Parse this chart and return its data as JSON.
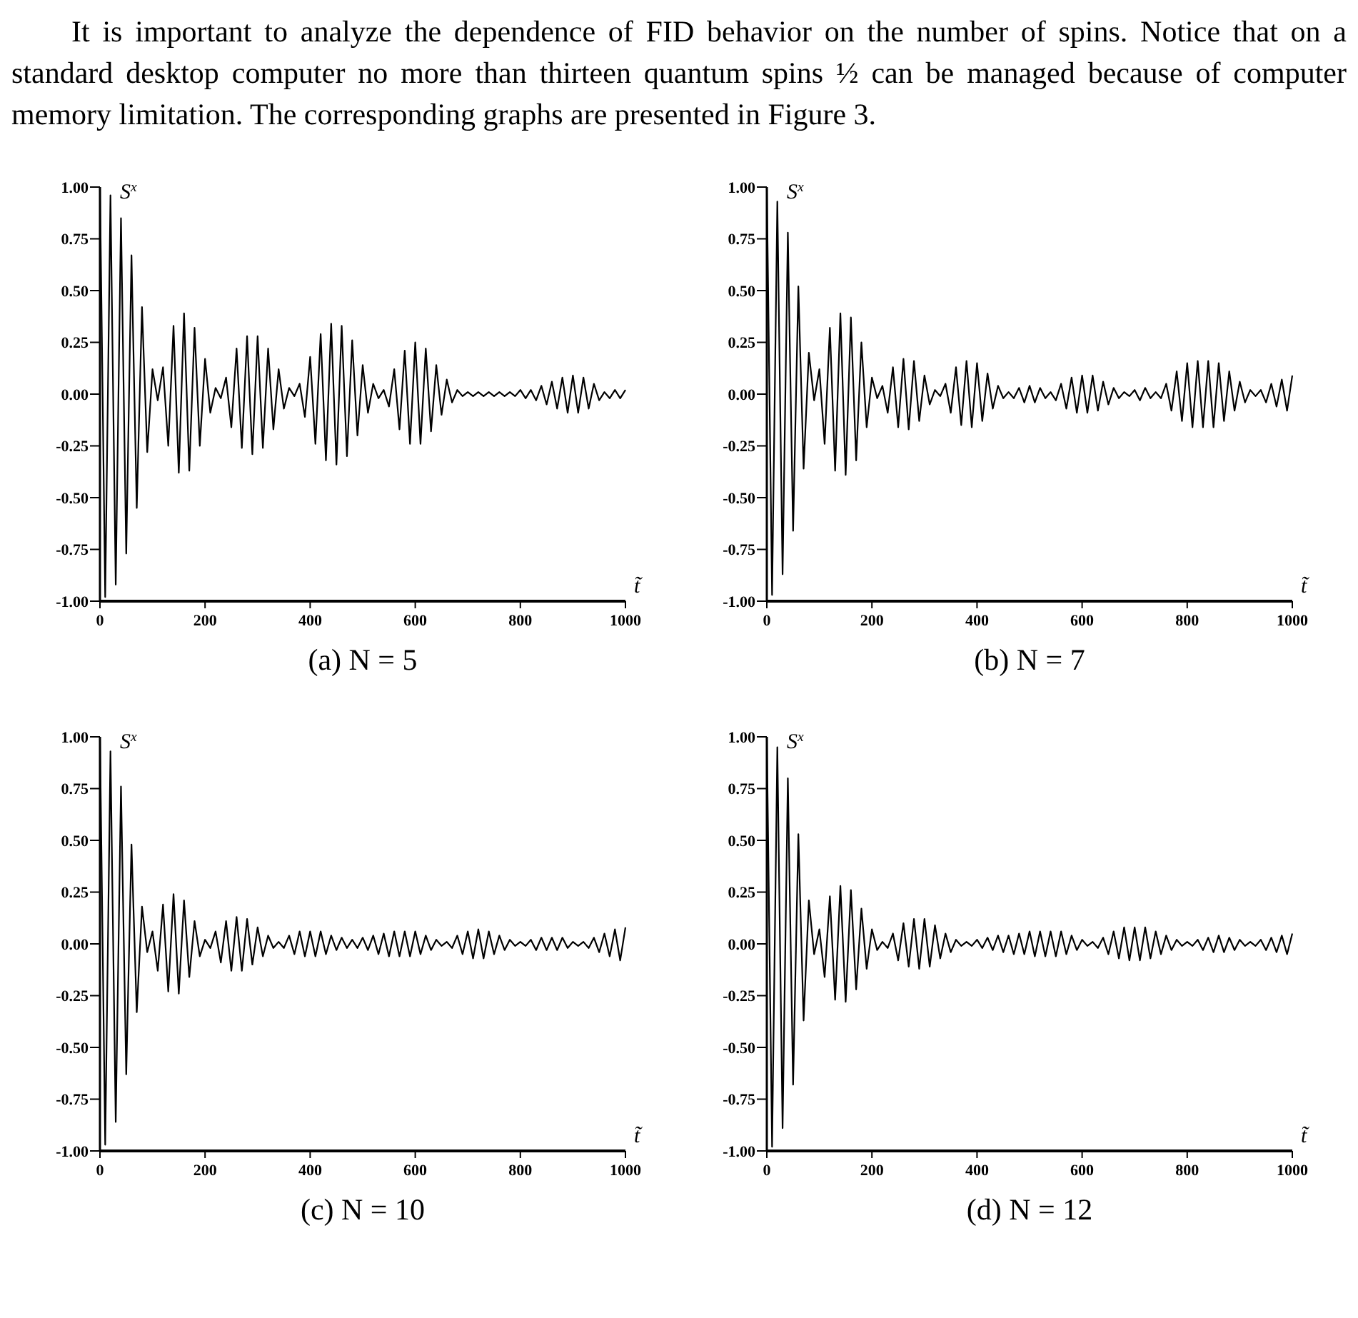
{
  "chart_data": [
    {
      "type": "line",
      "title": "(a)  N = 5",
      "xlabel": "t̃",
      "ylabel": "S$^{x}$",
      "annotations": [
        "It is important to analyze the dependence of FID behavior on the number of spins. Notice that on a standard desktop computer no more than thirteen quantum spins ½ can be managed because of computer memory limitation. The corresponding graphs are presented in Figure 3."
      ],
      "xlim": [
        0,
        1000
      ],
      "ylim": [
        -1,
        1
      ],
      "xticks": [
        0,
        200,
        400,
        600,
        800,
        1000
      ],
      "yticks": [
        {
          "value": -1,
          "label": "-1.00"
        },
        {
          "value": -0.75,
          "label": "-0.75"
        },
        {
          "value": -0.5,
          "label": "-0.50"
        },
        {
          "value": -0.25,
          "label": "-0.25"
        },
        {
          "value": 0,
          "label": "0.00"
        },
        {
          "value": 0.25,
          "label": "0.25"
        },
        {
          "value": 0.5,
          "label": "0.50"
        },
        {
          "value": 0.75,
          "label": "0.75"
        },
        {
          "value": 1,
          "label": "1.00"
        }
      ],
      "x": [
        0,
        10,
        20,
        30,
        40,
        50,
        60,
        70,
        80,
        90,
        100,
        110,
        120,
        130,
        140,
        150,
        160,
        170,
        180,
        190,
        200,
        210,
        220,
        230,
        240,
        250,
        260,
        270,
        280,
        290,
        300,
        310,
        320,
        330,
        340,
        350,
        360,
        370,
        380,
        390,
        400,
        410,
        420,
        430,
        440,
        450,
        460,
        470,
        480,
        490,
        500,
        510,
        520,
        530,
        540,
        550,
        560,
        570,
        580,
        590,
        600,
        610,
        620,
        630,
        640,
        650,
        660,
        670,
        680,
        690,
        700,
        710,
        720,
        730,
        740,
        750,
        760,
        770,
        780,
        790,
        800,
        810,
        820,
        830,
        840,
        850,
        860,
        870,
        880,
        890,
        900,
        910,
        920,
        930,
        940,
        950,
        960,
        970,
        980,
        990,
        1000
      ],
      "series": [
        {
          "color": "#000000",
          "values": [
            1.0,
            -0.98,
            0.96,
            -0.92,
            0.85,
            -0.77,
            0.67,
            -0.55,
            0.42,
            -0.28,
            0.12,
            -0.03,
            0.13,
            -0.25,
            0.33,
            -0.38,
            0.39,
            -0.37,
            0.32,
            -0.25,
            0.17,
            -0.09,
            0.03,
            -0.02,
            0.08,
            -0.16,
            0.22,
            -0.26,
            0.28,
            -0.29,
            0.28,
            -0.26,
            0.22,
            -0.17,
            0.12,
            -0.07,
            0.03,
            -0.01,
            0.05,
            -0.11,
            0.18,
            -0.24,
            0.29,
            -0.32,
            0.34,
            -0.34,
            0.33,
            -0.3,
            0.26,
            -0.2,
            0.14,
            -0.09,
            0.05,
            -0.02,
            0.02,
            -0.06,
            0.12,
            -0.17,
            0.21,
            -0.24,
            0.25,
            -0.24,
            0.22,
            -0.18,
            0.14,
            -0.1,
            0.07,
            -0.04,
            0.02,
            -0.01,
            0.01,
            -0.01,
            0.01,
            -0.01,
            0.01,
            -0.01,
            0.01,
            -0.01,
            0.01,
            -0.01,
            0.02,
            -0.02,
            0.02,
            -0.03,
            0.04,
            -0.05,
            0.06,
            -0.07,
            0.08,
            -0.09,
            0.09,
            -0.09,
            0.08,
            -0.07,
            0.05,
            -0.03,
            0.01,
            -0.02,
            0.02,
            -0.02,
            0.02
          ]
        }
      ]
    },
    {
      "type": "line",
      "title": "(b)  N = 7",
      "xlabel": "t̃",
      "ylabel": "S$^{x}$",
      "xlim": [
        0,
        1000
      ],
      "ylim": [
        -1,
        1
      ],
      "xticks": [
        0,
        200,
        400,
        600,
        800,
        1000
      ],
      "yticks": [
        {
          "value": -1,
          "label": "-1.00"
        },
        {
          "value": -0.75,
          "label": "-0.75"
        },
        {
          "value": -0.5,
          "label": "-0.50"
        },
        {
          "value": -0.25,
          "label": "-0.25"
        },
        {
          "value": 0,
          "label": "0.00"
        },
        {
          "value": 0.25,
          "label": "0.25"
        },
        {
          "value": 0.5,
          "label": "0.50"
        },
        {
          "value": 0.75,
          "label": "0.75"
        },
        {
          "value": 1,
          "label": "1.00"
        }
      ],
      "x": [
        0,
        10,
        20,
        30,
        40,
        50,
        60,
        70,
        80,
        90,
        100,
        110,
        120,
        130,
        140,
        150,
        160,
        170,
        180,
        190,
        200,
        210,
        220,
        230,
        240,
        250,
        260,
        270,
        280,
        290,
        300,
        310,
        320,
        330,
        340,
        350,
        360,
        370,
        380,
        390,
        400,
        410,
        420,
        430,
        440,
        450,
        460,
        470,
        480,
        490,
        500,
        510,
        520,
        530,
        540,
        550,
        560,
        570,
        580,
        590,
        600,
        610,
        620,
        630,
        640,
        650,
        660,
        670,
        680,
        690,
        700,
        710,
        720,
        730,
        740,
        750,
        760,
        770,
        780,
        790,
        800,
        810,
        820,
        830,
        840,
        850,
        860,
        870,
        880,
        890,
        900,
        910,
        920,
        930,
        940,
        950,
        960,
        970,
        980,
        990,
        1000
      ],
      "series": [
        {
          "color": "#000000",
          "values": [
            1.0,
            -0.97,
            0.93,
            -0.87,
            0.78,
            -0.66,
            0.52,
            -0.36,
            0.2,
            -0.03,
            0.12,
            -0.24,
            0.32,
            -0.37,
            0.39,
            -0.39,
            0.37,
            -0.32,
            0.25,
            -0.16,
            0.08,
            -0.02,
            0.04,
            -0.09,
            0.13,
            -0.16,
            0.17,
            -0.17,
            0.16,
            -0.13,
            0.09,
            -0.05,
            0.02,
            -0.01,
            0.05,
            -0.09,
            0.13,
            -0.15,
            0.16,
            -0.16,
            0.15,
            -0.13,
            0.1,
            -0.07,
            0.04,
            -0.02,
            0.01,
            -0.02,
            0.03,
            -0.04,
            0.04,
            -0.04,
            0.03,
            -0.02,
            0.01,
            -0.03,
            0.05,
            -0.07,
            0.08,
            -0.09,
            0.09,
            -0.09,
            0.09,
            -0.08,
            0.06,
            -0.05,
            0.03,
            -0.02,
            0.01,
            -0.01,
            0.02,
            -0.03,
            0.03,
            -0.02,
            0.01,
            -0.02,
            0.05,
            -0.08,
            0.11,
            -0.13,
            0.15,
            -0.16,
            0.16,
            -0.16,
            0.16,
            -0.16,
            0.15,
            -0.13,
            0.11,
            -0.08,
            0.06,
            -0.04,
            0.02,
            -0.01,
            0.02,
            -0.04,
            0.05,
            -0.06,
            0.07,
            -0.08,
            0.09
          ]
        }
      ]
    },
    {
      "type": "line",
      "title": "(c)  N = 10",
      "xlabel": "t̃",
      "ylabel": "S$^{x}$",
      "xlim": [
        0,
        1000
      ],
      "ylim": [
        -1,
        1
      ],
      "xticks": [
        0,
        200,
        400,
        600,
        800,
        1000
      ],
      "yticks": [
        {
          "value": -1,
          "label": "-1.00"
        },
        {
          "value": -0.75,
          "label": "-0.75"
        },
        {
          "value": -0.5,
          "label": "-0.50"
        },
        {
          "value": -0.25,
          "label": "-0.25"
        },
        {
          "value": 0,
          "label": "0.00"
        },
        {
          "value": 0.25,
          "label": "0.25"
        },
        {
          "value": 0.5,
          "label": "0.50"
        },
        {
          "value": 0.75,
          "label": "0.75"
        },
        {
          "value": 1,
          "label": "1.00"
        }
      ],
      "x": [
        0,
        10,
        20,
        30,
        40,
        50,
        60,
        70,
        80,
        90,
        100,
        110,
        120,
        130,
        140,
        150,
        160,
        170,
        180,
        190,
        200,
        210,
        220,
        230,
        240,
        250,
        260,
        270,
        280,
        290,
        300,
        310,
        320,
        330,
        340,
        350,
        360,
        370,
        380,
        390,
        400,
        410,
        420,
        430,
        440,
        450,
        460,
        470,
        480,
        490,
        500,
        510,
        520,
        530,
        540,
        550,
        560,
        570,
        580,
        590,
        600,
        610,
        620,
        630,
        640,
        650,
        660,
        670,
        680,
        690,
        700,
        710,
        720,
        730,
        740,
        750,
        760,
        770,
        780,
        790,
        800,
        810,
        820,
        830,
        840,
        850,
        860,
        870,
        880,
        890,
        900,
        910,
        920,
        930,
        940,
        950,
        960,
        970,
        980,
        990,
        1000
      ],
      "series": [
        {
          "color": "#000000",
          "values": [
            1.0,
            -0.97,
            0.93,
            -0.86,
            0.76,
            -0.63,
            0.48,
            -0.33,
            0.18,
            -0.04,
            0.06,
            -0.13,
            0.19,
            -0.23,
            0.24,
            -0.24,
            0.21,
            -0.16,
            0.11,
            -0.06,
            0.02,
            -0.02,
            0.06,
            -0.09,
            0.11,
            -0.13,
            0.13,
            -0.13,
            0.12,
            -0.1,
            0.08,
            -0.06,
            0.04,
            -0.02,
            0.01,
            -0.02,
            0.04,
            -0.05,
            0.06,
            -0.06,
            0.06,
            -0.06,
            0.06,
            -0.05,
            0.04,
            -0.03,
            0.03,
            -0.02,
            0.02,
            -0.02,
            0.03,
            -0.03,
            0.04,
            -0.05,
            0.05,
            -0.06,
            0.06,
            -0.06,
            0.06,
            -0.06,
            0.06,
            -0.05,
            0.04,
            -0.03,
            0.02,
            -0.01,
            0.01,
            -0.02,
            0.04,
            -0.05,
            0.06,
            -0.07,
            0.07,
            -0.07,
            0.06,
            -0.05,
            0.04,
            -0.03,
            0.02,
            -0.01,
            0.01,
            -0.01,
            0.02,
            -0.03,
            0.03,
            -0.03,
            0.03,
            -0.03,
            0.03,
            -0.02,
            0.01,
            -0.01,
            0.01,
            -0.02,
            0.03,
            -0.04,
            0.05,
            -0.06,
            0.07,
            -0.08,
            0.08
          ]
        }
      ]
    },
    {
      "type": "line",
      "title": "(d)  N = 12",
      "xlabel": "t̃",
      "ylabel": "S$^{x}$",
      "xlim": [
        0,
        1000
      ],
      "ylim": [
        -1,
        1
      ],
      "xticks": [
        0,
        200,
        400,
        600,
        800,
        1000
      ],
      "yticks": [
        {
          "value": -1,
          "label": "-1.00"
        },
        {
          "value": -0.75,
          "label": "-0.75"
        },
        {
          "value": -0.5,
          "label": "-0.50"
        },
        {
          "value": -0.25,
          "label": "-0.25"
        },
        {
          "value": 0,
          "label": "0.00"
        },
        {
          "value": 0.25,
          "label": "0.25"
        },
        {
          "value": 0.5,
          "label": "0.50"
        },
        {
          "value": 0.75,
          "label": "0.75"
        },
        {
          "value": 1,
          "label": "1.00"
        }
      ],
      "x": [
        0,
        10,
        20,
        30,
        40,
        50,
        60,
        70,
        80,
        90,
        100,
        110,
        120,
        130,
        140,
        150,
        160,
        170,
        180,
        190,
        200,
        210,
        220,
        230,
        240,
        250,
        260,
        270,
        280,
        290,
        300,
        310,
        320,
        330,
        340,
        350,
        360,
        370,
        380,
        390,
        400,
        410,
        420,
        430,
        440,
        450,
        460,
        470,
        480,
        490,
        500,
        510,
        520,
        530,
        540,
        550,
        560,
        570,
        580,
        590,
        600,
        610,
        620,
        630,
        640,
        650,
        660,
        670,
        680,
        690,
        700,
        710,
        720,
        730,
        740,
        750,
        760,
        770,
        780,
        790,
        800,
        810,
        820,
        830,
        840,
        850,
        860,
        870,
        880,
        890,
        900,
        910,
        920,
        930,
        940,
        950,
        960,
        970,
        980,
        990,
        1000
      ],
      "series": [
        {
          "color": "#000000",
          "values": [
            1.0,
            -0.98,
            0.95,
            -0.89,
            0.8,
            -0.68,
            0.53,
            -0.37,
            0.21,
            -0.05,
            0.07,
            -0.16,
            0.23,
            -0.27,
            0.28,
            -0.28,
            0.26,
            -0.22,
            0.17,
            -0.12,
            0.07,
            -0.03,
            0.01,
            -0.02,
            0.05,
            -0.08,
            0.1,
            -0.11,
            0.12,
            -0.12,
            0.12,
            -0.11,
            0.09,
            -0.07,
            0.05,
            -0.04,
            0.02,
            -0.01,
            0.01,
            -0.01,
            0.02,
            -0.02,
            0.03,
            -0.03,
            0.04,
            -0.04,
            0.04,
            -0.05,
            0.05,
            -0.05,
            0.06,
            -0.06,
            0.06,
            -0.06,
            0.06,
            -0.06,
            0.06,
            -0.05,
            0.04,
            -0.03,
            0.02,
            -0.01,
            0.01,
            -0.02,
            0.03,
            -0.05,
            0.06,
            -0.07,
            0.08,
            -0.08,
            0.08,
            -0.08,
            0.08,
            -0.07,
            0.06,
            -0.05,
            0.04,
            -0.03,
            0.02,
            -0.01,
            0.01,
            -0.01,
            0.02,
            -0.03,
            0.03,
            -0.04,
            0.04,
            -0.04,
            0.03,
            -0.03,
            0.02,
            -0.01,
            0.01,
            -0.01,
            0.02,
            -0.03,
            0.03,
            -0.04,
            0.04,
            -0.05,
            0.05
          ]
        }
      ]
    }
  ]
}
